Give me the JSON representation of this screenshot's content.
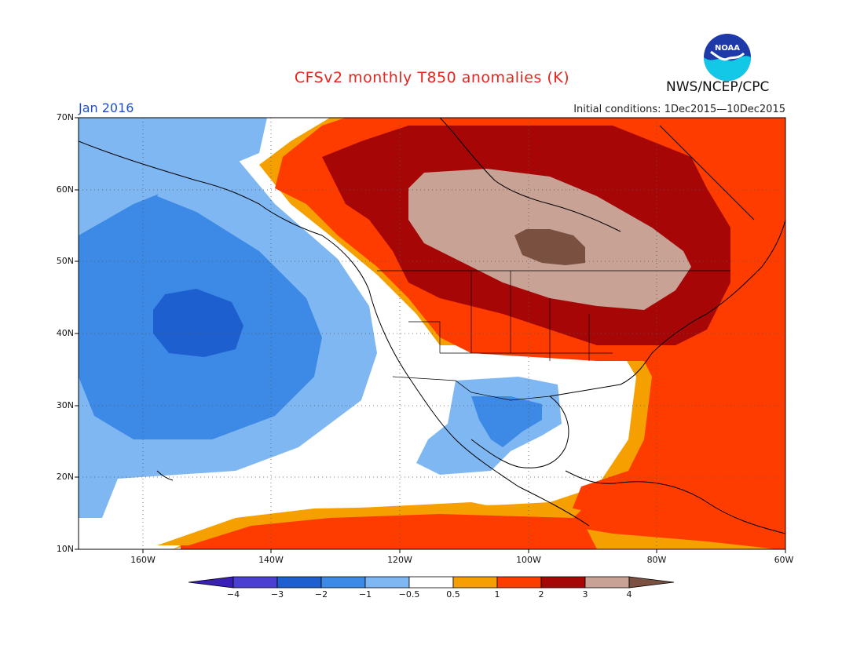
{
  "header": {
    "title": "CFSv2 monthly T850 anomalies (K)",
    "agency": "NWS/NCEP/CPC",
    "logo_text": "NOAA",
    "month": "Jan 2016",
    "initial_conditions": "Initial conditions: 1Dec2015—10Dec2015"
  },
  "axes": {
    "lat_labels": [
      "70N",
      "60N",
      "50N",
      "40N",
      "30N",
      "20N",
      "10N"
    ],
    "lon_labels": [
      "160W",
      "140W",
      "120W",
      "100W",
      "80W",
      "60W"
    ]
  },
  "colorbar": {
    "labels": [
      "−4",
      "−3",
      "−2",
      "−1",
      "−0.5",
      "0.5",
      "1",
      "2",
      "3",
      "4"
    ],
    "colors": [
      "#3a1fb5",
      "#4a3fd0",
      "#1e5fd0",
      "#3d8ae6",
      "#7fb7f2",
      "#ffffff",
      "#f5a000",
      "#ff3c00",
      "#a60606",
      "#c7a295",
      "#7a5040"
    ]
  },
  "anomaly_regions": [
    {
      "label": "strong warm core over central Canada",
      "level": "4"
    },
    {
      "label": "warm core over Great Lakes / Hudson Bay",
      "level": "3"
    },
    {
      "label": "cold anomaly over North Pacific",
      "level": "-2"
    },
    {
      "label": "cool anomaly over northern Mexico",
      "level": "-1"
    }
  ]
}
